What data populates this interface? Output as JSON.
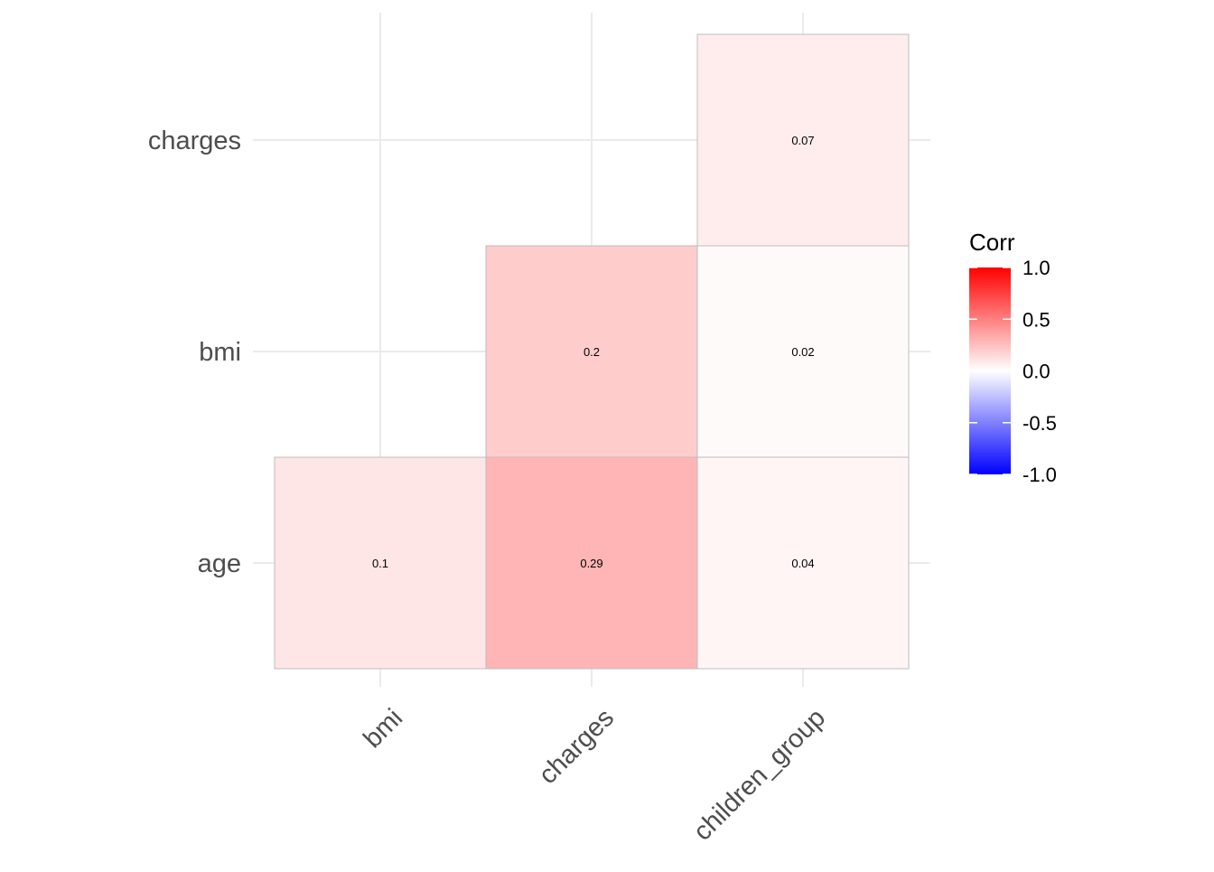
{
  "chart_data": {
    "type": "heatmap",
    "title": "",
    "xlabel": "",
    "ylabel": "",
    "x_categories": [
      "bmi",
      "charges",
      "children_group"
    ],
    "y_categories": [
      "age",
      "bmi",
      "charges"
    ],
    "cells": [
      {
        "x": "bmi",
        "y": "age",
        "value": 0.1,
        "label": "0.1"
      },
      {
        "x": "charges",
        "y": "age",
        "value": 0.29,
        "label": "0.29"
      },
      {
        "x": "children_group",
        "y": "age",
        "value": 0.04,
        "label": "0.04"
      },
      {
        "x": "charges",
        "y": "bmi",
        "value": 0.2,
        "label": "0.2"
      },
      {
        "x": "children_group",
        "y": "bmi",
        "value": 0.02,
        "label": "0.02"
      },
      {
        "x": "children_group",
        "y": "charges",
        "value": 0.07,
        "label": "0.07"
      }
    ],
    "color_scale": {
      "low": "#0000ff",
      "mid": "#ffffff",
      "high": "#ff0000",
      "limits": [
        -1,
        1
      ]
    },
    "legend": {
      "title": "Corr",
      "placement": "right",
      "ticks": [
        {
          "value": 1.0,
          "label": "1.0"
        },
        {
          "value": 0.5,
          "label": "0.5"
        },
        {
          "value": 0.0,
          "label": "0.0"
        },
        {
          "value": -0.5,
          "label": "-0.5"
        },
        {
          "value": -1.0,
          "label": "-1.0"
        }
      ]
    },
    "grid": true
  }
}
